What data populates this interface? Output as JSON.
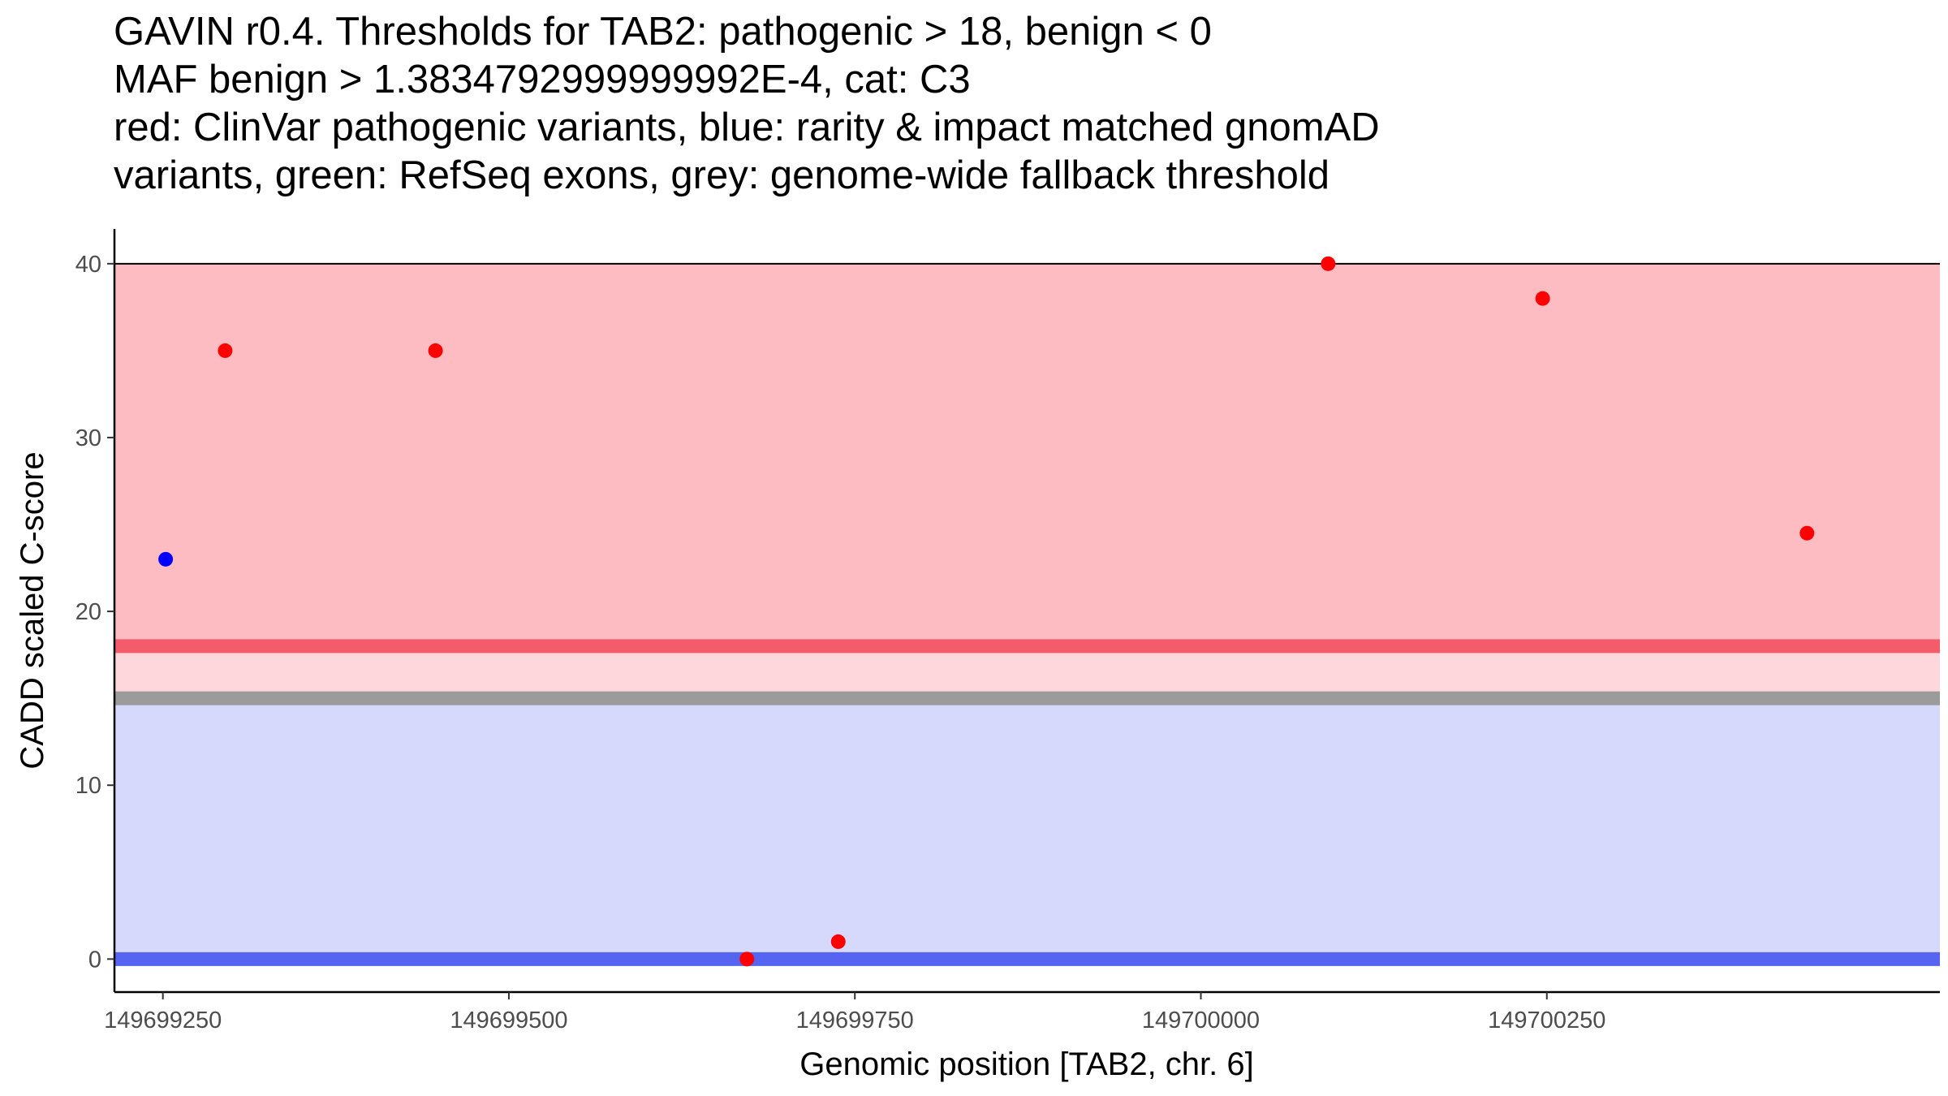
{
  "chart_data": {
    "type": "scatter",
    "title_lines": [
      "GAVIN r0.4. Thresholds for TAB2: pathogenic > 18, benign < 0",
      "MAF benign > 1.3834792999999992E-4, cat: C3",
      "red: ClinVar pathogenic variants, blue: rarity & impact matched gnomAD",
      "variants, green: RefSeq exons, grey: genome-wide fallback threshold"
    ],
    "xlabel": "Genomic position [TAB2, chr. 6]",
    "ylabel": "CADD scaled C-score",
    "xlim": [
      149699215,
      149700534
    ],
    "ylim": [
      -1.9,
      42
    ],
    "x_ticks": [
      149699250,
      149699500,
      149699750,
      149700000,
      149700250
    ],
    "x_tick_labels": [
      "149699250",
      "149699500",
      "149699750",
      "149700000",
      "149700250"
    ],
    "y_ticks": [
      0,
      10,
      20,
      30,
      40
    ],
    "y_tick_labels": [
      "0",
      "10",
      "20",
      "30",
      "40"
    ],
    "regions": [
      {
        "name": "pathogenic-region",
        "ymin": 18,
        "ymax": 40,
        "color": "#fdbcc1"
      },
      {
        "name": "intermediate-region",
        "ymin": 15,
        "ymax": 18,
        "color": "#fed7dc"
      },
      {
        "name": "benign-region",
        "ymin": 0,
        "ymax": 15,
        "color": "#d6d8fc"
      }
    ],
    "threshold_lines": [
      {
        "name": "pathogenic-threshold-line",
        "y": 18,
        "color": "#f45b6b"
      },
      {
        "name": "genome-wide-fallback-line",
        "y": 15,
        "color": "#9b9b9b"
      },
      {
        "name": "benign-threshold-line",
        "y": 0,
        "color": "#5564f1"
      },
      {
        "name": "top-line",
        "y": 40,
        "color": "#000000"
      }
    ],
    "series": [
      {
        "name": "ClinVar pathogenic variants",
        "color": "#ff0000",
        "points": [
          {
            "x": 149699295,
            "y": 35
          },
          {
            "x": 149699447,
            "y": 35
          },
          {
            "x": 149699672,
            "y": 0
          },
          {
            "x": 149699738,
            "y": 1
          },
          {
            "x": 149700092,
            "y": 40
          },
          {
            "x": 149700247,
            "y": 38
          },
          {
            "x": 149700438,
            "y": 24.5
          }
        ]
      },
      {
        "name": "rarity & impact matched gnomAD variants",
        "color": "#0000ff",
        "points": [
          {
            "x": 149699252,
            "y": 23
          }
        ]
      }
    ]
  }
}
